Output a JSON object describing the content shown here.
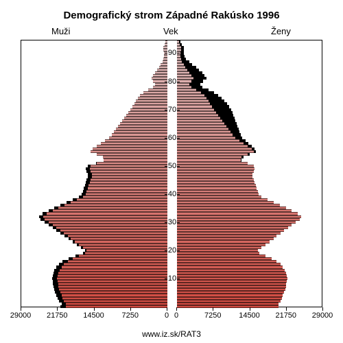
{
  "title": "Demografický strom Západné Rakúsko 1996",
  "title_fontsize": 15,
  "labels": {
    "left": "Muži",
    "center": "Vek",
    "right": "Ženy"
  },
  "source_text": "www.iz.sk/RAT3",
  "chart": {
    "type": "population-pyramid",
    "background_color": "#ffffff",
    "border_color": "#000000",
    "excess_color": "#000000",
    "bar_color_top": "#e0c0c0",
    "bar_color_bottom": "#d04a40",
    "bar_outline_color": "#000000",
    "ages": {
      "min": 0,
      "max": 94
    },
    "ylim": [
      0,
      95
    ],
    "xaxis": {
      "max": 29000,
      "ticks": [
        29000,
        21750,
        14500,
        7250,
        0
      ],
      "ticks_right": [
        0,
        7250,
        14500,
        21750,
        29000
      ],
      "fontsize": 11
    },
    "yaxis": {
      "ticks": [
        10,
        20,
        30,
        40,
        50,
        60,
        70,
        80,
        90
      ],
      "fontsize": 11
    },
    "men": [
      21200,
      21000,
      21500,
      21800,
      22000,
      22300,
      22500,
      22600,
      22700,
      22800,
      22900,
      22800,
      22600,
      22400,
      22000,
      21500,
      20800,
      19600,
      18200,
      16800,
      16400,
      17200,
      18000,
      18800,
      19600,
      20400,
      21200,
      22000,
      22800,
      23600,
      24400,
      25200,
      25400,
      24800,
      23600,
      22400,
      21200,
      20000,
      18800,
      17600,
      17000,
      16800,
      16600,
      16400,
      16200,
      16000,
      15800,
      15800,
      16000,
      16200,
      15800,
      14200,
      12600,
      12800,
      14000,
      15200,
      14800,
      14000,
      13200,
      12400,
      11600,
      11000,
      10600,
      10200,
      9800,
      9400,
      9000,
      8600,
      8200,
      7800,
      7400,
      7000,
      6600,
      6200,
      5800,
      5400,
      4800,
      3800,
      2800,
      2400,
      2800,
      3200,
      2900,
      2500,
      2100,
      1700,
      1300,
      1000,
      800,
      700,
      700,
      800,
      800,
      600,
      400
    ],
    "women": [
      20200,
      20100,
      20500,
      20800,
      21000,
      21300,
      21500,
      21600,
      21700,
      21800,
      21900,
      21800,
      21600,
      21400,
      21000,
      20500,
      19800,
      18800,
      17600,
      16400,
      16000,
      16800,
      17600,
      18400,
      19200,
      19800,
      20600,
      21200,
      22000,
      22800,
      23600,
      24400,
      24600,
      24000,
      22800,
      21600,
      20400,
      19200,
      18000,
      16800,
      16200,
      16000,
      15800,
      15600,
      15400,
      15200,
      15000,
      15000,
      15200,
      15400,
      15200,
      14000,
      12800,
      13200,
      14400,
      15600,
      15400,
      14800,
      14200,
      13600,
      13000,
      12600,
      12400,
      12200,
      12000,
      11800,
      11600,
      11400,
      11200,
      11000,
      10800,
      10400,
      10000,
      9400,
      8800,
      8200,
      7400,
      6200,
      5000,
      4600,
      5200,
      5800,
      5400,
      5000,
      4400,
      3800,
      3000,
      2400,
      1800,
      1500,
      1400,
      1400,
      1300,
      1000,
      700
    ]
  }
}
